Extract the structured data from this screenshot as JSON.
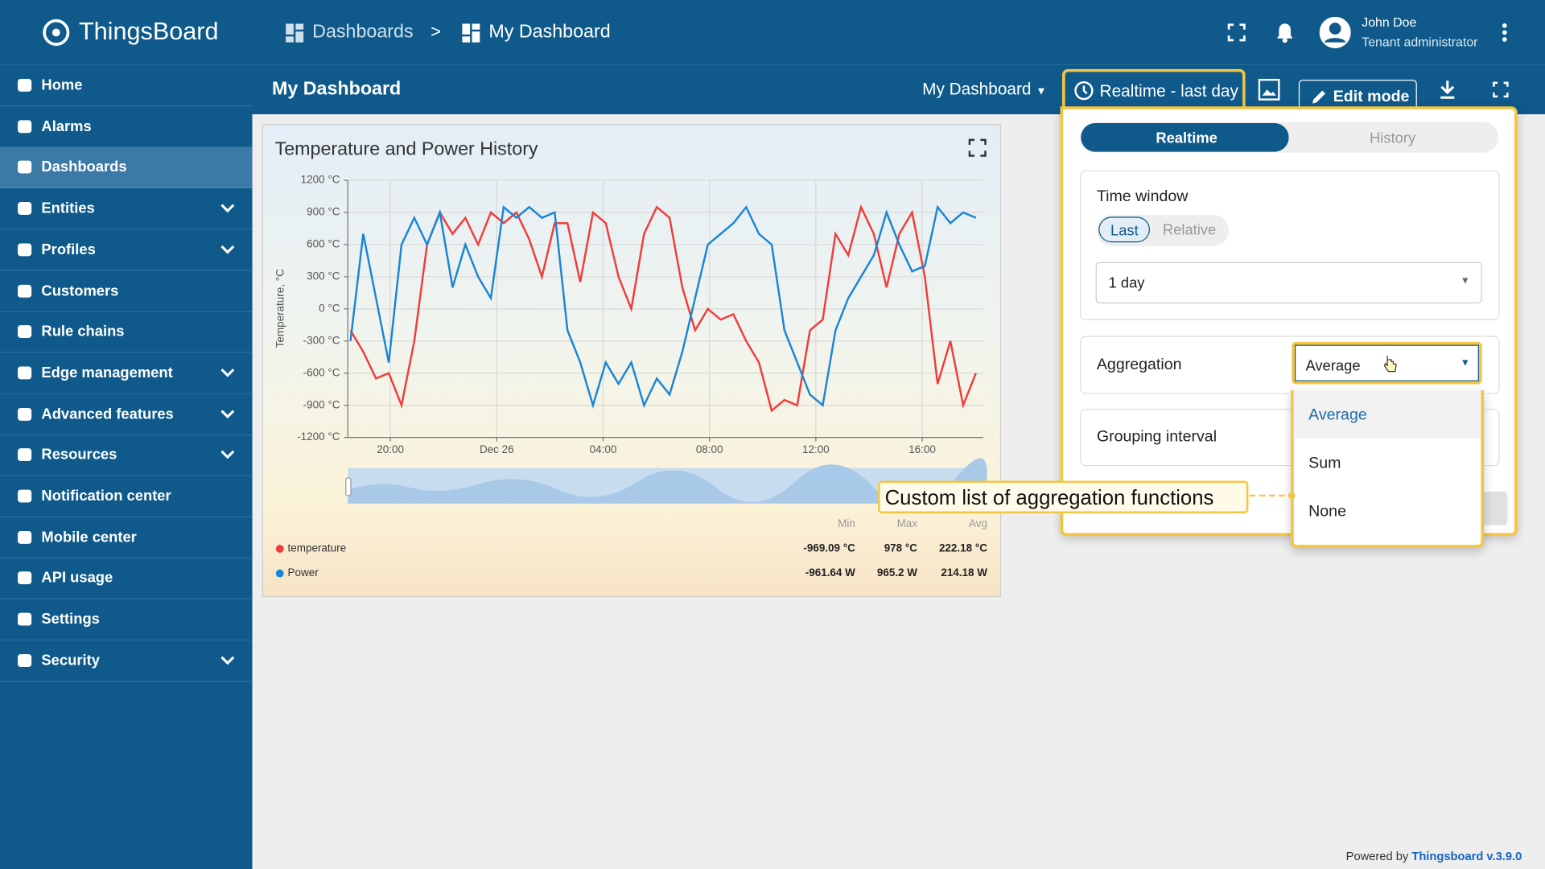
{
  "header": {
    "logo": "ThingsBoard",
    "breadcrumbs": [
      "Dashboards",
      "My Dashboard"
    ],
    "separator": ">",
    "user": {
      "name": "John Doe",
      "role": "Tenant administrator"
    }
  },
  "sidebar": {
    "selected": 2,
    "items": [
      {
        "label": "Home",
        "expandable": false
      },
      {
        "label": "Alarms",
        "expandable": false
      },
      {
        "label": "Dashboards",
        "expandable": false
      },
      {
        "label": "Entities",
        "expandable": true
      },
      {
        "label": "Profiles",
        "expandable": true
      },
      {
        "label": "Customers",
        "expandable": false
      },
      {
        "label": "Rule chains",
        "expandable": false
      },
      {
        "label": "Edge management",
        "expandable": true
      },
      {
        "label": "Advanced features",
        "expandable": true
      },
      {
        "label": "Resources",
        "expandable": true
      },
      {
        "label": "Notification center",
        "expandable": false
      },
      {
        "label": "Mobile center",
        "expandable": false
      },
      {
        "label": "API usage",
        "expandable": false
      },
      {
        "label": "Settings",
        "expandable": false
      },
      {
        "label": "Security",
        "expandable": true
      }
    ]
  },
  "toolbar": {
    "title": "My Dashboard",
    "dashboard_select": "My Dashboard",
    "timewindow": "Realtime - last day",
    "edit": "Edit mode"
  },
  "chart_data": {
    "type": "line",
    "title": "Temperature and Power History",
    "ylabel": "Temperature, °C",
    "x": [
      18.5,
      18.98,
      19.46,
      19.94,
      20.42,
      20.9,
      21.38,
      21.86,
      22.34,
      22.82,
      23.3,
      23.78,
      24.26,
      24.74,
      25.22,
      25.7,
      26.18,
      26.66,
      27.14,
      27.62,
      28.1,
      28.58,
      29.06,
      29.54,
      30.02,
      30.5,
      30.98,
      31.46,
      31.94,
      32.42,
      32.9,
      33.38,
      33.86,
      34.34,
      34.82,
      35.3,
      35.78,
      36.26,
      36.74,
      37.22,
      37.7,
      38.18,
      38.66,
      39.14,
      39.62,
      40.1,
      40.58,
      41.06,
      41.54,
      42.02
    ],
    "xlim": [
      18.4,
      42.3
    ],
    "xticks": [
      {
        "value": 20,
        "label": "20:00"
      },
      {
        "value": 24,
        "label": "Dec 26"
      },
      {
        "value": 28,
        "label": "04:00"
      },
      {
        "value": 32,
        "label": "08:00"
      },
      {
        "value": 36,
        "label": "12:00"
      },
      {
        "value": 40,
        "label": "16:00"
      }
    ],
    "ylim": [
      -1200,
      1200
    ],
    "yticks": [
      {
        "value": 1200,
        "label": "1200 °C"
      },
      {
        "value": 900,
        "label": "900 °C"
      },
      {
        "value": 600,
        "label": "600 °C"
      },
      {
        "value": 300,
        "label": "300 °C"
      },
      {
        "value": 0,
        "label": "0 °C"
      },
      {
        "value": -300,
        "label": "-300 °C"
      },
      {
        "value": -600,
        "label": "-600 °C"
      },
      {
        "value": -900,
        "label": "-900 °C"
      },
      {
        "value": -1200,
        "label": "-1200 °C"
      }
    ],
    "grid": true,
    "series": [
      {
        "name": "temperature",
        "color": "#f03c3c",
        "values": [
          -200,
          -400,
          -650,
          -600,
          -900,
          -300,
          600,
          900,
          700,
          850,
          600,
          900,
          800,
          900,
          650,
          300,
          800,
          800,
          250,
          900,
          800,
          300,
          0,
          700,
          950,
          850,
          200,
          -200,
          0,
          -100,
          -50,
          -300,
          -500,
          -950,
          -850,
          -900,
          -200,
          -100,
          700,
          500,
          950,
          700,
          200,
          700,
          900,
          300,
          -700,
          -300,
          -900,
          -600
        ]
      },
      {
        "name": "Power",
        "color": "#1a85d6",
        "values": [
          -300,
          700,
          100,
          -500,
          600,
          850,
          600,
          900,
          200,
          600,
          300,
          100,
          950,
          850,
          950,
          850,
          900,
          -200,
          -500,
          -900,
          -500,
          -700,
          -500,
          -900,
          -650,
          -800,
          -400,
          100,
          600,
          700,
          800,
          950,
          700,
          600,
          -200,
          -500,
          -800,
          -900,
          -200,
          100,
          300,
          500,
          900,
          600,
          350,
          400,
          950,
          800,
          900,
          850
        ]
      }
    ],
    "legend_columns": [
      "Min",
      "Max",
      "Avg"
    ],
    "legend_rows": [
      [
        "-969.09 °C",
        "978 °C",
        "222.18 °C"
      ],
      [
        "-961.64 W",
        "965.2 W",
        "214.18 W"
      ]
    ]
  },
  "timewindow_panel": {
    "tabs": [
      "Realtime",
      "History"
    ],
    "time_window": {
      "title": "Time window",
      "modes": [
        "Last",
        "Relative"
      ],
      "interval": "1 day"
    },
    "aggregation": {
      "label": "Aggregation",
      "value": "Average",
      "options": [
        "Average",
        "Sum",
        "None"
      ]
    },
    "grouping": {
      "label": "Grouping interval"
    }
  },
  "annotation": "Custom list of aggregation functions",
  "footer": {
    "prefix": "Powered by",
    "link": "Thingsboard v.3.9.0"
  }
}
